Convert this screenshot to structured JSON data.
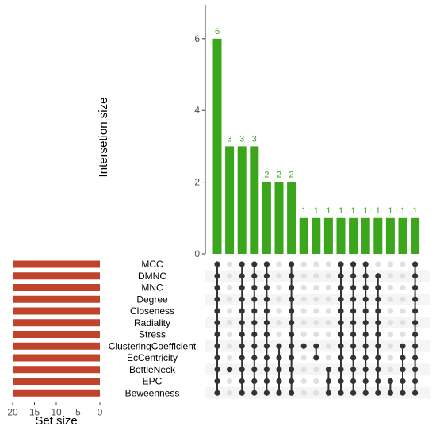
{
  "chart_data": {
    "type": "upset",
    "colors": {
      "intersection_bar": "#3aa61c",
      "set_bar": "#c0442b",
      "dot_on": "#333333",
      "dot_off": "#e0e0e0",
      "stripe": "#f5f5f5"
    },
    "intersection_axis": {
      "ylabel": "Intersetion size",
      "ylim": [
        0,
        6.5
      ],
      "ticks": [
        "0",
        "2",
        "4",
        "6"
      ]
    },
    "set_axis": {
      "xlabel": "Set size",
      "xlim": [
        20,
        0
      ],
      "ticks": [
        "20",
        "15",
        "10",
        "5",
        "0"
      ]
    },
    "sets": [
      {
        "name": "MCC",
        "size": 20
      },
      {
        "name": "DMNC",
        "size": 20
      },
      {
        "name": "MNC",
        "size": 20
      },
      {
        "name": "Degree",
        "size": 20
      },
      {
        "name": "Closeness",
        "size": 20
      },
      {
        "name": "Radiality",
        "size": 20
      },
      {
        "name": "Stress",
        "size": 20
      },
      {
        "name": "ClusteringCoefficient",
        "size": 20
      },
      {
        "name": "EcCentricity",
        "size": 20
      },
      {
        "name": "BottleNeck",
        "size": 20
      },
      {
        "name": "EPC",
        "size": 20
      },
      {
        "name": "Beweenness",
        "size": 20
      }
    ],
    "intersections": [
      {
        "size": 6,
        "size_label": "6",
        "members": [
          0,
          1,
          2,
          3,
          4,
          5,
          6,
          7,
          8,
          9,
          10,
          11
        ]
      },
      {
        "size": 3,
        "size_label": "3",
        "members": [
          9
        ]
      },
      {
        "size": 3,
        "size_label": "3",
        "members": [
          0,
          1,
          2,
          3,
          4,
          5,
          6,
          7,
          8,
          9,
          10,
          11
        ]
      },
      {
        "size": 3,
        "size_label": "3",
        "members": [
          0,
          1,
          2,
          3,
          4,
          5,
          6,
          7,
          8,
          9,
          10,
          11
        ]
      },
      {
        "size": 2,
        "size_label": "2",
        "members": [
          0,
          1,
          2,
          3,
          4,
          5,
          6,
          7,
          8,
          9,
          10,
          11
        ]
      },
      {
        "size": 2,
        "size_label": "2",
        "members": [
          7,
          8,
          9,
          10,
          11
        ]
      },
      {
        "size": 2,
        "size_label": "2",
        "members": [
          0,
          1,
          2,
          3,
          4,
          5,
          6,
          7,
          8,
          9,
          10,
          11
        ]
      },
      {
        "size": 1,
        "size_label": "1",
        "members": [
          7
        ]
      },
      {
        "size": 1,
        "size_label": "1",
        "members": [
          7,
          8
        ]
      },
      {
        "size": 1,
        "size_label": "1",
        "members": [
          9,
          10,
          11
        ]
      },
      {
        "size": 1,
        "size_label": "1",
        "members": [
          0,
          1,
          2,
          3,
          4,
          5,
          6,
          7,
          8,
          9,
          10,
          11
        ]
      },
      {
        "size": 1,
        "size_label": "1",
        "members": [
          0,
          1,
          2,
          3,
          4,
          5,
          6,
          7,
          8,
          9,
          10,
          11
        ]
      },
      {
        "size": 1,
        "size_label": "1",
        "members": [
          0,
          1,
          2,
          3,
          4,
          5,
          6,
          7,
          8,
          9,
          10,
          11
        ]
      },
      {
        "size": 1,
        "size_label": "1",
        "members": [
          1,
          2,
          3,
          4,
          5,
          6,
          7,
          8,
          9,
          10,
          11
        ]
      },
      {
        "size": 1,
        "size_label": "1",
        "members": [
          10,
          11
        ]
      },
      {
        "size": 1,
        "size_label": "1",
        "members": [
          7,
          8,
          9,
          10,
          11
        ]
      },
      {
        "size": 1,
        "size_label": "1",
        "members": [
          0,
          1,
          2,
          3,
          4,
          5,
          6,
          7,
          8,
          9,
          10,
          11
        ]
      }
    ]
  }
}
